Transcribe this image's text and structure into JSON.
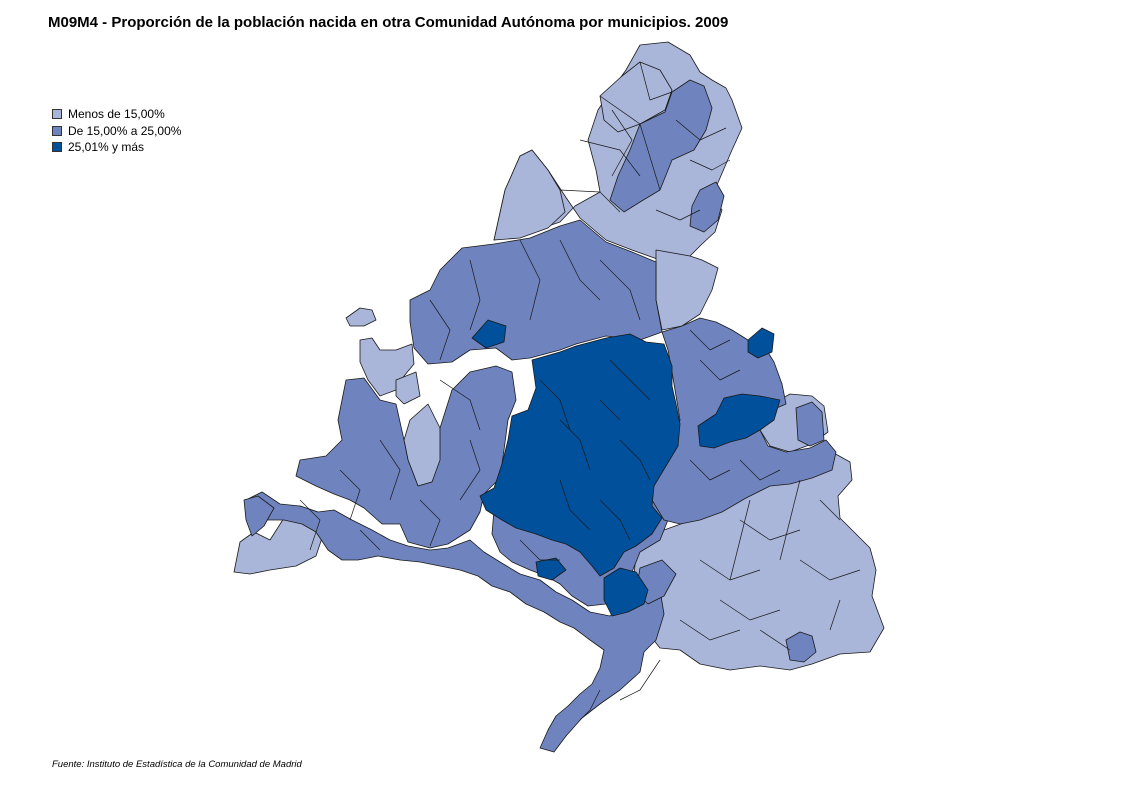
{
  "title": "M09M4 - Proporción de la población nacida en otra Comunidad Autónoma por municipios. 2009",
  "legend": {
    "items": [
      {
        "label": "Menos de 15,00%",
        "color": "#a9b5d9"
      },
      {
        "label": "De 15,00% a 25,00%",
        "color": "#6f84be"
      },
      {
        "label": "25,01%  y más",
        "color": "#00509b"
      }
    ]
  },
  "source": "Fuente: Instituto de Estadística de la Comunidad de Madrid",
  "colors": {
    "low": "#a9b5d9",
    "mid": "#6f84be",
    "high": "#00509b"
  }
}
